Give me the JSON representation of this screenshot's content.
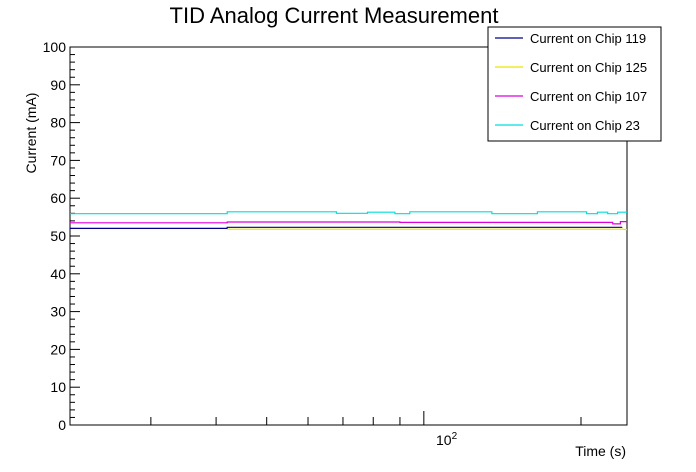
{
  "chart_data": {
    "type": "line",
    "title": "TID Analog Current Measurement",
    "xlabel": "Time (s)",
    "ylabel": "Current (mA)",
    "xscale": "log",
    "xlim": [
      21,
      245
    ],
    "ylim": [
      0,
      100
    ],
    "y_ticks": [
      0,
      10,
      20,
      30,
      40,
      50,
      60,
      70,
      80,
      90,
      100
    ],
    "x_tick_major": {
      "base": "10",
      "exponent": "2",
      "value": 100
    },
    "grid": false,
    "legend_position": "top-right",
    "series": [
      {
        "name": "Current on Chip 119",
        "color": "#00008c",
        "x": [
          21,
          42,
          42,
          240
        ],
        "y": [
          52.0,
          52.0,
          52.3,
          52.3
        ]
      },
      {
        "name": "Current on Chip 125",
        "color": "#e6e600",
        "x": [
          42,
          100,
          200,
          240,
          245
        ],
        "y": [
          51.8,
          51.8,
          51.8,
          51.8,
          51.7
        ]
      },
      {
        "name": "Current on Chip 107",
        "color": "#dd00dd",
        "x": [
          21,
          42,
          42,
          90,
          90,
          230,
          230,
          238,
          238,
          245
        ],
        "y": [
          53.5,
          53.5,
          53.7,
          53.7,
          53.6,
          53.6,
          53.2,
          53.2,
          53.8,
          53.8
        ]
      },
      {
        "name": "Current on Chip 23",
        "color": "#00dddd",
        "x": [
          21,
          42,
          42,
          68,
          68,
          78,
          78,
          88,
          88,
          94,
          94,
          135,
          135,
          165,
          165,
          205,
          205,
          215,
          215,
          225,
          225,
          235,
          235,
          245
        ],
        "y": [
          55.9,
          55.9,
          56.4,
          56.4,
          56.0,
          56.0,
          56.3,
          56.3,
          55.9,
          55.9,
          56.4,
          56.4,
          55.9,
          55.9,
          56.4,
          56.4,
          55.9,
          55.9,
          56.3,
          56.3,
          55.9,
          55.9,
          56.3,
          56.3
        ]
      }
    ]
  }
}
